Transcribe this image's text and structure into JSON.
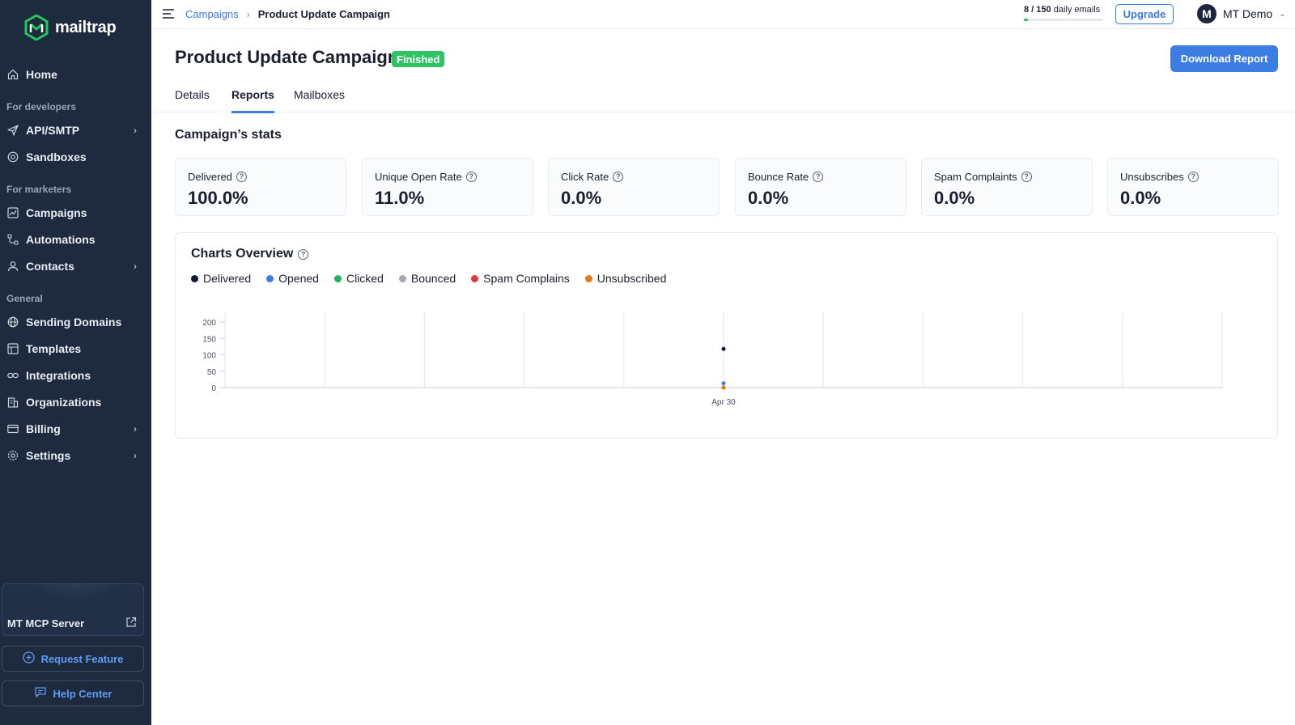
{
  "sidebar": {
    "logo_text": "mailtrap",
    "home": "Home",
    "section_developers": "For developers",
    "api_smtp": "API/SMTP",
    "sandboxes": "Sandboxes",
    "section_marketers": "For marketers",
    "campaigns": "Campaigns",
    "automations": "Automations",
    "contacts": "Contacts",
    "section_general": "General",
    "sending_domains": "Sending Domains",
    "templates": "Templates",
    "integrations": "Integrations",
    "organizations": "Organizations",
    "billing": "Billing",
    "settings": "Settings",
    "mcp_server": "MT MCP Server",
    "request_feature": "Request Feature",
    "help_center": "Help Center"
  },
  "topbar": {
    "breadcrumb_parent": "Campaigns",
    "breadcrumb_separator": "›",
    "breadcrumb_current": "Product Update Campaign",
    "quota_used": "8",
    "quota_total": "150",
    "quota_suffix": "daily emails",
    "quota_fraction": 0.053,
    "upgrade_label": "Upgrade",
    "avatar_initial": "M",
    "user_name": "MT Demo"
  },
  "header": {
    "title": "Product Update Campaign",
    "status": "Finished",
    "download_label": "Download Report",
    "tabs": [
      "Details",
      "Reports",
      "Mailboxes"
    ],
    "active_tab": "Reports"
  },
  "stats": {
    "title": "Campaign’s stats",
    "cards": [
      {
        "label": "Delivered",
        "value": "100.0%"
      },
      {
        "label": "Unique Open Rate",
        "value": "11.0%"
      },
      {
        "label": "Click Rate",
        "value": "0.0%"
      },
      {
        "label": "Bounce Rate",
        "value": "0.0%"
      },
      {
        "label": "Spam Complaints",
        "value": "0.0%"
      },
      {
        "label": "Unsubscribes",
        "value": "0.0%"
      }
    ]
  },
  "chart": {
    "title": "Charts Overview",
    "legend": [
      {
        "label": "Delivered",
        "color": "#111a33"
      },
      {
        "label": "Opened",
        "color": "#3c7de4"
      },
      {
        "label": "Clicked",
        "color": "#22b35a"
      },
      {
        "label": "Bounced",
        "color": "#a3a8b2"
      },
      {
        "label": "Spam Complains",
        "color": "#e23b3b"
      },
      {
        "label": "Unsubscribed",
        "color": "#e07b16"
      }
    ]
  },
  "chart_data": {
    "type": "scatter",
    "title": "Charts Overview",
    "xlabel": "",
    "ylabel": "",
    "categories": [
      "Apr 30"
    ],
    "ylim": [
      0,
      200
    ],
    "yticks": [
      0,
      50,
      100,
      150,
      200
    ],
    "grid": "vertical",
    "legend_placement": "top-left",
    "series": [
      {
        "name": "Delivered",
        "color": "#111a33",
        "values": [
          118
        ]
      },
      {
        "name": "Opened",
        "color": "#3c7de4",
        "values": [
          13
        ]
      },
      {
        "name": "Clicked",
        "color": "#22b35a",
        "values": [
          0
        ]
      },
      {
        "name": "Bounced",
        "color": "#a3a8b2",
        "values": [
          0
        ]
      },
      {
        "name": "Spam Complains",
        "color": "#e23b3b",
        "values": [
          0
        ]
      },
      {
        "name": "Unsubscribed",
        "color": "#e07b16",
        "values": [
          0
        ]
      }
    ]
  }
}
